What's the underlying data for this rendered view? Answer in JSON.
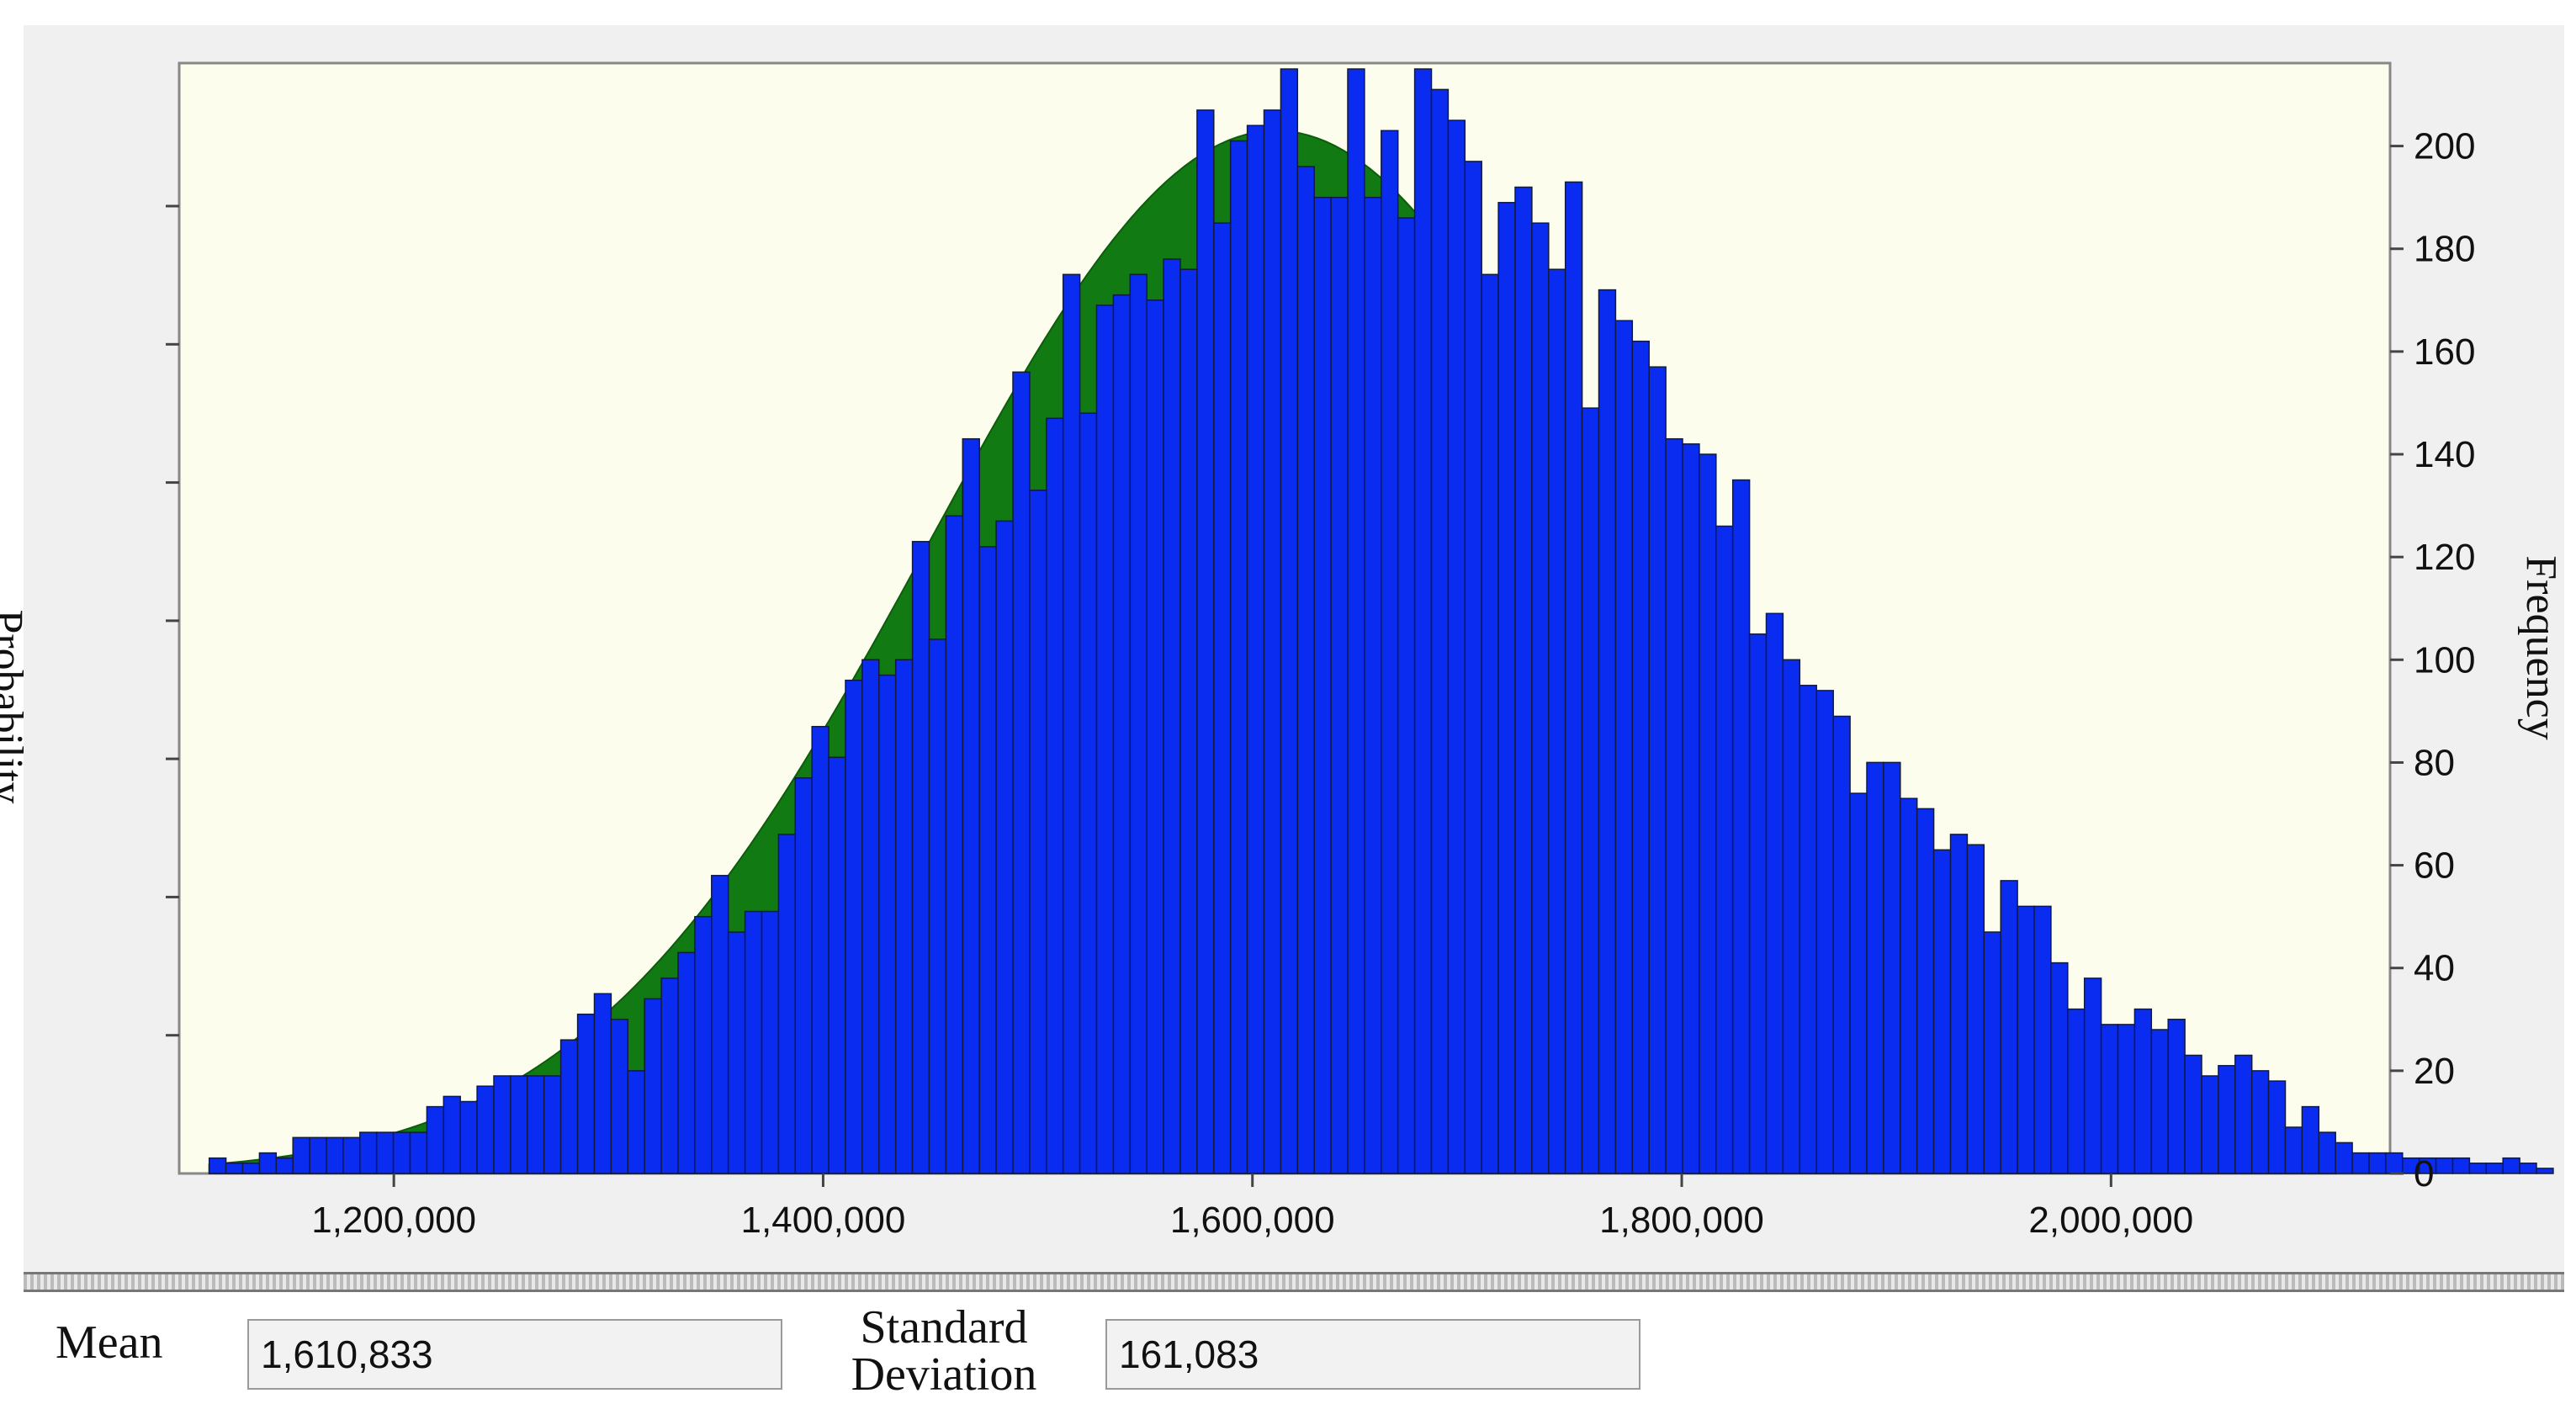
{
  "stats": {
    "mean_label": "Mean",
    "mean_value": "1,610,833",
    "sd_label_line1": "Standard",
    "sd_label_line2": "Deviation",
    "sd_value": "161,083"
  },
  "colors": {
    "bar_fill": "#0a2cf0",
    "curve_fill": "#127a12",
    "plot_bg": "#fdfdee"
  },
  "chart_data": {
    "type": "bar",
    "ylabel_left": "Probability",
    "ylabel_right": "Frequency",
    "x_range": [
      1100000,
      2130000
    ],
    "y_range": [
      0,
      215
    ],
    "x_ticks": [
      1200000,
      1400000,
      1600000,
      1800000,
      2000000
    ],
    "x_tick_labels": [
      "1,200,000",
      "1,400,000",
      "1,600,000",
      "1,800,000",
      "2,000,000"
    ],
    "y_ticks": [
      0,
      20,
      40,
      60,
      80,
      100,
      120,
      140,
      160,
      180,
      200
    ],
    "y_tick_labels": [
      "0",
      "20",
      "40",
      "60",
      "80",
      "100",
      "120",
      "140",
      "160",
      "180",
      "200"
    ],
    "left_axis_minor_ticks": 7,
    "bin_start": 1114000,
    "bin_width": 7800,
    "frequencies": [
      3,
      2,
      2,
      4,
      3,
      7,
      7,
      7,
      7,
      8,
      8,
      8,
      8,
      13,
      15,
      14,
      17,
      19,
      19,
      19,
      19,
      26,
      31,
      35,
      30,
      20,
      34,
      38,
      43,
      50,
      58,
      47,
      51,
      51,
      66,
      77,
      87,
      81,
      96,
      100,
      97,
      100,
      123,
      104,
      128,
      143,
      122,
      127,
      156,
      133,
      147,
      175,
      148,
      169,
      171,
      175,
      170,
      178,
      176,
      207,
      185,
      201,
      204,
      207,
      215,
      196,
      190,
      190,
      215,
      190,
      203,
      186,
      215,
      211,
      205,
      197,
      175,
      189,
      192,
      185,
      176,
      193,
      149,
      172,
      166,
      162,
      157,
      143,
      142,
      140,
      126,
      135,
      105,
      109,
      100,
      95,
      94,
      89,
      74,
      80,
      80,
      73,
      71,
      63,
      66,
      64,
      47,
      57,
      52,
      52,
      41,
      32,
      38,
      29,
      29,
      32,
      28,
      30,
      23,
      19,
      21,
      23,
      20,
      18,
      9,
      13,
      8,
      6,
      4,
      4,
      4,
      3,
      3,
      3,
      3,
      2,
      2,
      3,
      2,
      1
    ],
    "normal_curve": {
      "mean": 1610833,
      "sd": 161083,
      "peak_frequency": 203
    }
  }
}
